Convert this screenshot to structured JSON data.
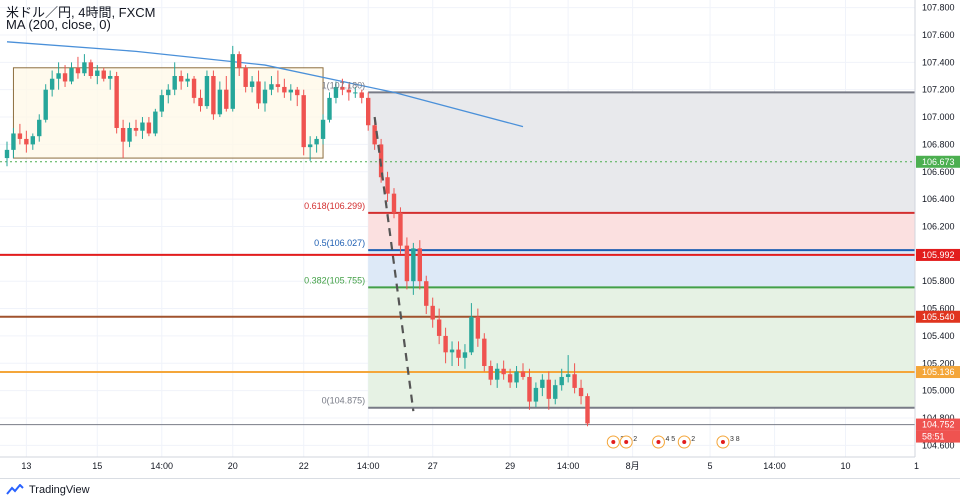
{
  "header": {
    "symbol_line": "米ドル／円, 4時間, FXCM",
    "indicator_line": "MA (200, close, 0)"
  },
  "footer": {
    "brand": "TradingView"
  },
  "colors": {
    "up": "#26a69a",
    "down": "#ef5350",
    "ma": "#4a90d9",
    "fib_red": "#d32f2f",
    "fib_blue": "#1e5fb3",
    "fib_green": "#43a047",
    "hline_red": "#e21d1d",
    "hline_brown": "#a0522d",
    "hline_orange": "#f4a63a",
    "hline_gray": "#787b86",
    "dash_green": "#4caf50"
  },
  "chart_data": {
    "type": "candlestick",
    "title": "米ドル／円, 4時間, FXCM",
    "indicator": "MA (200, close, 0)",
    "ylim": [
      104.6,
      107.9
    ],
    "y_ticks": [
      "107.800",
      "107.600",
      "107.400",
      "107.200",
      "107.000",
      "106.800",
      "106.600",
      "106.400",
      "106.200",
      "106.000",
      "105.800",
      "105.600",
      "105.400",
      "105.200",
      "105.000",
      "104.800",
      "104.600"
    ],
    "x_ticks": [
      {
        "label": "13",
        "i": 3
      },
      {
        "label": "15",
        "i": 14
      },
      {
        "label": "14:00",
        "i": 24
      },
      {
        "label": "20",
        "i": 35
      },
      {
        "label": "22",
        "i": 46
      },
      {
        "label": "14:00",
        "i": 56
      },
      {
        "label": "27",
        "i": 66
      },
      {
        "label": "29",
        "i": 78
      },
      {
        "label": "14:00",
        "i": 87
      },
      {
        "label": "8月",
        "i": 97
      },
      {
        "label": "5",
        "i": 109
      },
      {
        "label": "14:00",
        "i": 119
      },
      {
        "label": "10",
        "i": 130
      },
      {
        "label": "1",
        "i": 141
      }
    ],
    "candles": [
      [
        106.7,
        106.82,
        106.64,
        106.76
      ],
      [
        106.76,
        106.92,
        106.7,
        106.88
      ],
      [
        106.88,
        106.95,
        106.8,
        106.84
      ],
      [
        106.84,
        106.9,
        106.74,
        106.8
      ],
      [
        106.8,
        106.88,
        106.76,
        106.86
      ],
      [
        106.86,
        107.02,
        106.82,
        106.98
      ],
      [
        106.98,
        107.24,
        106.96,
        107.2
      ],
      [
        107.2,
        107.34,
        107.15,
        107.28
      ],
      [
        107.28,
        107.4,
        107.2,
        107.32
      ],
      [
        107.32,
        107.38,
        107.22,
        107.26
      ],
      [
        107.26,
        107.4,
        107.24,
        107.36
      ],
      [
        107.36,
        107.44,
        107.28,
        107.32
      ],
      [
        107.32,
        107.46,
        107.3,
        107.4
      ],
      [
        107.4,
        107.42,
        107.28,
        107.3
      ],
      [
        107.3,
        107.38,
        107.24,
        107.34
      ],
      [
        107.34,
        107.36,
        107.26,
        107.28
      ],
      [
        107.28,
        107.34,
        107.2,
        107.3
      ],
      [
        107.3,
        107.33,
        106.88,
        106.92
      ],
      [
        106.92,
        106.98,
        106.7,
        106.82
      ],
      [
        106.82,
        106.96,
        106.78,
        106.92
      ],
      [
        106.92,
        106.98,
        106.86,
        106.9
      ],
      [
        106.9,
        107.0,
        106.84,
        106.96
      ],
      [
        106.96,
        107.0,
        106.86,
        106.88
      ],
      [
        106.88,
        107.06,
        106.86,
        107.04
      ],
      [
        107.04,
        107.2,
        107.0,
        107.16
      ],
      [
        107.16,
        107.24,
        107.1,
        107.2
      ],
      [
        107.2,
        107.4,
        107.16,
        107.3
      ],
      [
        107.3,
        107.34,
        107.2,
        107.26
      ],
      [
        107.26,
        107.32,
        107.22,
        107.28
      ],
      [
        107.28,
        107.3,
        107.1,
        107.14
      ],
      [
        107.14,
        107.2,
        107.04,
        107.08
      ],
      [
        107.08,
        107.34,
        107.06,
        107.3
      ],
      [
        107.3,
        107.34,
        106.98,
        107.02
      ],
      [
        107.02,
        107.26,
        107.0,
        107.2
      ],
      [
        107.2,
        107.3,
        107.04,
        107.06
      ],
      [
        107.06,
        107.52,
        107.04,
        107.46
      ],
      [
        107.46,
        107.48,
        107.3,
        107.36
      ],
      [
        107.36,
        107.38,
        107.18,
        107.22
      ],
      [
        107.22,
        107.3,
        107.18,
        107.26
      ],
      [
        107.26,
        107.34,
        107.06,
        107.1
      ],
      [
        107.1,
        107.26,
        107.04,
        107.2
      ],
      [
        107.2,
        107.3,
        107.16,
        107.24
      ],
      [
        107.24,
        107.34,
        107.18,
        107.22
      ],
      [
        107.22,
        107.28,
        107.14,
        107.18
      ],
      [
        107.18,
        107.24,
        107.12,
        107.2
      ],
      [
        107.2,
        107.22,
        107.08,
        107.16
      ],
      [
        107.16,
        107.2,
        106.72,
        106.78
      ],
      [
        106.78,
        106.86,
        106.68,
        106.8
      ],
      [
        106.8,
        106.86,
        106.74,
        106.84
      ],
      [
        106.84,
        107.02,
        106.8,
        106.98
      ],
      [
        106.98,
        107.18,
        106.96,
        107.14
      ],
      [
        107.14,
        107.26,
        107.1,
        107.22
      ],
      [
        107.22,
        107.28,
        107.16,
        107.2
      ],
      [
        107.2,
        107.24,
        107.12,
        107.18
      ],
      [
        107.18,
        107.22,
        107.14,
        107.18
      ],
      [
        107.18,
        107.2,
        107.1,
        107.14
      ],
      [
        107.14,
        107.18,
        106.9,
        106.94
      ],
      [
        106.94,
        106.98,
        106.76,
        106.8
      ],
      [
        106.8,
        106.84,
        106.52,
        106.56
      ],
      [
        106.56,
        106.6,
        106.38,
        106.44
      ],
      [
        106.44,
        106.48,
        106.26,
        106.3
      ],
      [
        106.3,
        106.34,
        106.0,
        106.06
      ],
      [
        106.06,
        106.12,
        105.74,
        105.8
      ],
      [
        105.8,
        106.08,
        105.7,
        106.04
      ],
      [
        106.04,
        106.1,
        105.74,
        105.8
      ],
      [
        105.8,
        105.84,
        105.56,
        105.62
      ],
      [
        105.62,
        105.68,
        105.46,
        105.52
      ],
      [
        105.52,
        105.6,
        105.34,
        105.4
      ],
      [
        105.4,
        105.46,
        105.2,
        105.28
      ],
      [
        105.28,
        105.36,
        105.18,
        105.3
      ],
      [
        105.3,
        105.36,
        105.18,
        105.24
      ],
      [
        105.24,
        105.34,
        105.16,
        105.28
      ],
      [
        105.28,
        105.64,
        105.26,
        105.54
      ],
      [
        105.54,
        105.6,
        105.32,
        105.38
      ],
      [
        105.38,
        105.42,
        105.14,
        105.18
      ],
      [
        105.18,
        105.22,
        105.04,
        105.08
      ],
      [
        105.08,
        105.2,
        105.02,
        105.16
      ],
      [
        105.16,
        105.22,
        105.08,
        105.12
      ],
      [
        105.12,
        105.16,
        105.02,
        105.06
      ],
      [
        105.06,
        105.18,
        105.02,
        105.14
      ],
      [
        105.14,
        105.2,
        105.08,
        105.1
      ],
      [
        105.1,
        105.16,
        104.86,
        104.92
      ],
      [
        104.92,
        105.06,
        104.88,
        105.02
      ],
      [
        105.02,
        105.12,
        104.96,
        105.08
      ],
      [
        105.08,
        105.14,
        104.86,
        104.94
      ],
      [
        104.94,
        105.08,
        104.9,
        105.04
      ],
      [
        105.04,
        105.16,
        105.0,
        105.1
      ],
      [
        105.1,
        105.26,
        105.06,
        105.12
      ],
      [
        105.12,
        105.2,
        104.98,
        105.02
      ],
      [
        105.02,
        105.08,
        104.9,
        104.96
      ],
      [
        104.96,
        104.98,
        104.74,
        104.76
      ]
    ],
    "moving_average": [
      {
        "i": 0,
        "v": 107.55
      },
      {
        "i": 20,
        "v": 107.48
      },
      {
        "i": 40,
        "v": 107.38
      },
      {
        "i": 60,
        "v": 107.18
      },
      {
        "i": 80,
        "v": 106.93
      }
    ],
    "horizontal_lines": [
      {
        "price": 106.673,
        "color": "#4caf50",
        "dashed": true,
        "label": "106.673",
        "label_bg": "#4caf50"
      },
      {
        "price": 105.992,
        "color": "#e21d1d",
        "dashed": false,
        "label": "105.992",
        "label_bg": "#e21d1d"
      },
      {
        "price": 105.54,
        "color": "#a0522d",
        "dashed": false,
        "label": "105.540",
        "label_bg": "#e0341f"
      },
      {
        "price": 105.136,
        "color": "#f4a63a",
        "dashed": false,
        "label": "105.136",
        "label_bg": "#f4a63a"
      },
      {
        "price": 104.752,
        "color": "#787b86",
        "dashed": false,
        "label": "104.752",
        "label_bg": "#ef5350"
      }
    ],
    "countdown_label": "58:51",
    "fibonacci": {
      "start_i": 56,
      "levels": [
        {
          "ratio": "1",
          "price": 107.18,
          "label": "1(107.180)",
          "color": "#787b86",
          "fill": "#e8e9ec"
        },
        {
          "ratio": "0.618",
          "price": 106.299,
          "label": "0.618(106.299)",
          "color": "#d32f2f",
          "fill": "#fbe0e0"
        },
        {
          "ratio": "0.5",
          "price": 106.027,
          "label": "0.5(106.027)",
          "color": "#1e5fb3",
          "fill": "#dde9f7"
        },
        {
          "ratio": "0.382",
          "price": 105.755,
          "label": "0.382(105.755)",
          "color": "#43a047",
          "fill": "#e6f2e4"
        },
        {
          "ratio": "0",
          "price": 104.875,
          "label": "0(104.875)",
          "color": "#787b86",
          "fill": null
        }
      ]
    },
    "range_box": {
      "i0": 1,
      "i1": 49,
      "top": 107.36,
      "bottom": 106.7
    },
    "trend_dashes": [
      {
        "i0": 57,
        "p0": 107.0,
        "i1": 63,
        "p1": 104.85
      }
    ],
    "events": [
      {
        "i": 94,
        "text": "3 2"
      },
      {
        "i": 96,
        "text": "2"
      },
      {
        "i": 101,
        "text": "4 5"
      },
      {
        "i": 105,
        "text": "2"
      },
      {
        "i": 111,
        "text": "3 8"
      }
    ]
  }
}
